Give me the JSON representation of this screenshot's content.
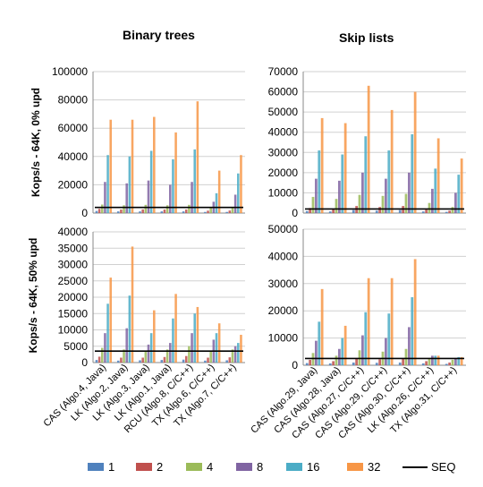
{
  "column_titles": [
    "Binary trees",
    "Skip lists"
  ],
  "row_labels": [
    "Kops/s - 64K, 0% upd",
    "Kops/s - 64K, 50% upd"
  ],
  "legend": [
    {
      "label": "1",
      "color": "#4f81bd"
    },
    {
      "label": "2",
      "color": "#c0504d"
    },
    {
      "label": "4",
      "color": "#9bbb59"
    },
    {
      "label": "8",
      "color": "#8064a2"
    },
    {
      "label": "16",
      "color": "#4bacc6"
    },
    {
      "label": "32",
      "color": "#f79646"
    },
    {
      "label": "SEQ",
      "color": "#000000",
      "kind": "line"
    }
  ],
  "chart_data": [
    {
      "type": "bar",
      "categories": [
        "CAS (Algo.4, Java)",
        "LK (Algo.2, Java)",
        "LK (Algo.3, Java)",
        "LK (Algo.1, Java)",
        "RCU (Algo.8, C/C++)",
        "TX (Algo.6, C/C++)",
        "TX (Algo.7, C/C++)"
      ],
      "series": [
        {
          "name": "1",
          "values": [
            1500,
            1200,
            1200,
            1200,
            1200,
            800,
            800
          ]
        },
        {
          "name": "2",
          "values": [
            3000,
            2500,
            2600,
            2500,
            2500,
            1700,
            1800
          ]
        },
        {
          "name": "4",
          "values": [
            6000,
            5500,
            5800,
            5500,
            5800,
            3800,
            4000
          ]
        },
        {
          "name": "8",
          "values": [
            22000,
            21000,
            23000,
            20000,
            22000,
            8000,
            13000
          ]
        },
        {
          "name": "16",
          "values": [
            41000,
            40000,
            44000,
            38000,
            45000,
            14000,
            28000
          ]
        },
        {
          "name": "32",
          "values": [
            66000,
            66000,
            68000,
            57000,
            79000,
            30000,
            41000
          ]
        }
      ],
      "seq": 4000,
      "ylim": [
        0,
        100000
      ],
      "yticks": [
        0,
        20000,
        40000,
        60000,
        80000,
        100000
      ],
      "ytick_labels": [
        "0",
        "20000",
        "40000",
        "60000",
        "80000",
        "100000"
      ],
      "show_category_labels": false
    },
    {
      "type": "bar",
      "categories": [
        "CAS (Algo.29, Java)",
        "CAS (Algo.28, Java)",
        "CAS (Algo.27, C/C++)",
        "CAS (Algo.29, C/C++)",
        "CAS (Algo.30, C/C++)",
        "LK (Algo.26, C/C++)",
        "TX (Algo.31, C/C++)"
      ],
      "series": [
        {
          "name": "1",
          "values": [
            1000,
            800,
            1500,
            1200,
            1500,
            800,
            600
          ]
        },
        {
          "name": "2",
          "values": [
            2500,
            2000,
            3500,
            3000,
            3500,
            1700,
            1200
          ]
        },
        {
          "name": "4",
          "values": [
            8000,
            7000,
            9000,
            8500,
            9500,
            5000,
            3000
          ]
        },
        {
          "name": "8",
          "values": [
            17000,
            16000,
            20000,
            17000,
            20000,
            12000,
            10000
          ]
        },
        {
          "name": "16",
          "values": [
            31000,
            29000,
            38000,
            31000,
            39000,
            22000,
            19000
          ]
        },
        {
          "name": "32",
          "values": [
            47000,
            44500,
            63000,
            51000,
            60000,
            37000,
            27000
          ]
        }
      ],
      "seq": 2000,
      "ylim": [
        0,
        70000
      ],
      "yticks": [
        0,
        10000,
        20000,
        30000,
        40000,
        50000,
        60000,
        70000
      ],
      "ytick_labels": [
        "0",
        "10000",
        "20000",
        "30000",
        "40000",
        "50000",
        "60000",
        "70000"
      ],
      "show_category_labels": false
    },
    {
      "type": "bar",
      "categories": [
        "CAS (Algo.4, Java)",
        "LK (Algo.2, Java)",
        "LK (Algo.3, Java)",
        "LK (Algo.1, Java)",
        "RCU (Algo.8, C/C++)",
        "TX (Algo.6, C/C++)",
        "TX (Algo.7, C/C++)"
      ],
      "series": [
        {
          "name": "1",
          "values": [
            800,
            600,
            700,
            800,
            900,
            600,
            700
          ]
        },
        {
          "name": "2",
          "values": [
            1800,
            1500,
            1500,
            1700,
            2000,
            1500,
            1600
          ]
        },
        {
          "name": "4",
          "values": [
            4500,
            4000,
            3500,
            4000,
            5000,
            3500,
            4000
          ]
        },
        {
          "name": "8",
          "values": [
            9000,
            10500,
            5500,
            6000,
            9000,
            7000,
            5000
          ]
        },
        {
          "name": "16",
          "values": [
            18000,
            20500,
            9000,
            13500,
            15000,
            9000,
            6000
          ]
        },
        {
          "name": "32",
          "values": [
            26000,
            35500,
            16000,
            21000,
            17000,
            12000,
            8500
          ]
        }
      ],
      "seq": 3500,
      "ylim": [
        0,
        40000
      ],
      "yticks": [
        0,
        5000,
        10000,
        15000,
        20000,
        25000,
        30000,
        35000,
        40000
      ],
      "ytick_labels": [
        "0",
        "5000",
        "10000",
        "15000",
        "20000",
        "25000",
        "30000",
        "35000",
        "40000"
      ],
      "show_category_labels": true
    },
    {
      "type": "bar",
      "categories": [
        "CAS (Algo.29, Java)",
        "CAS (Algo.28, Java)",
        "CAS (Algo.27, C/C++)",
        "CAS (Algo.29, C/C++)",
        "CAS (Algo.30, C/C++)",
        "LK (Algo.26, C/C++)",
        "TX (Algo.31, C/C++)"
      ],
      "series": [
        {
          "name": "1",
          "values": [
            800,
            700,
            1000,
            900,
            1000,
            700,
            500
          ]
        },
        {
          "name": "2",
          "values": [
            2000,
            1500,
            2500,
            2200,
            2500,
            1500,
            1000
          ]
        },
        {
          "name": "4",
          "values": [
            4500,
            3500,
            5500,
            5000,
            6000,
            2500,
            2000
          ]
        },
        {
          "name": "8",
          "values": [
            9000,
            6000,
            11000,
            10000,
            14000,
            3500,
            2500
          ]
        },
        {
          "name": "16",
          "values": [
            16000,
            10000,
            19500,
            19000,
            25000,
            3500,
            3000
          ]
        },
        {
          "name": "32",
          "values": [
            28000,
            14500,
            32000,
            32000,
            39000,
            3500,
            3000
          ]
        }
      ],
      "seq": 2500,
      "ylim": [
        0,
        50000
      ],
      "yticks": [
        0,
        10000,
        20000,
        30000,
        40000,
        50000
      ],
      "ytick_labels": [
        "0",
        "10000",
        "20000",
        "30000",
        "40000",
        "50000"
      ],
      "show_category_labels": true
    }
  ]
}
